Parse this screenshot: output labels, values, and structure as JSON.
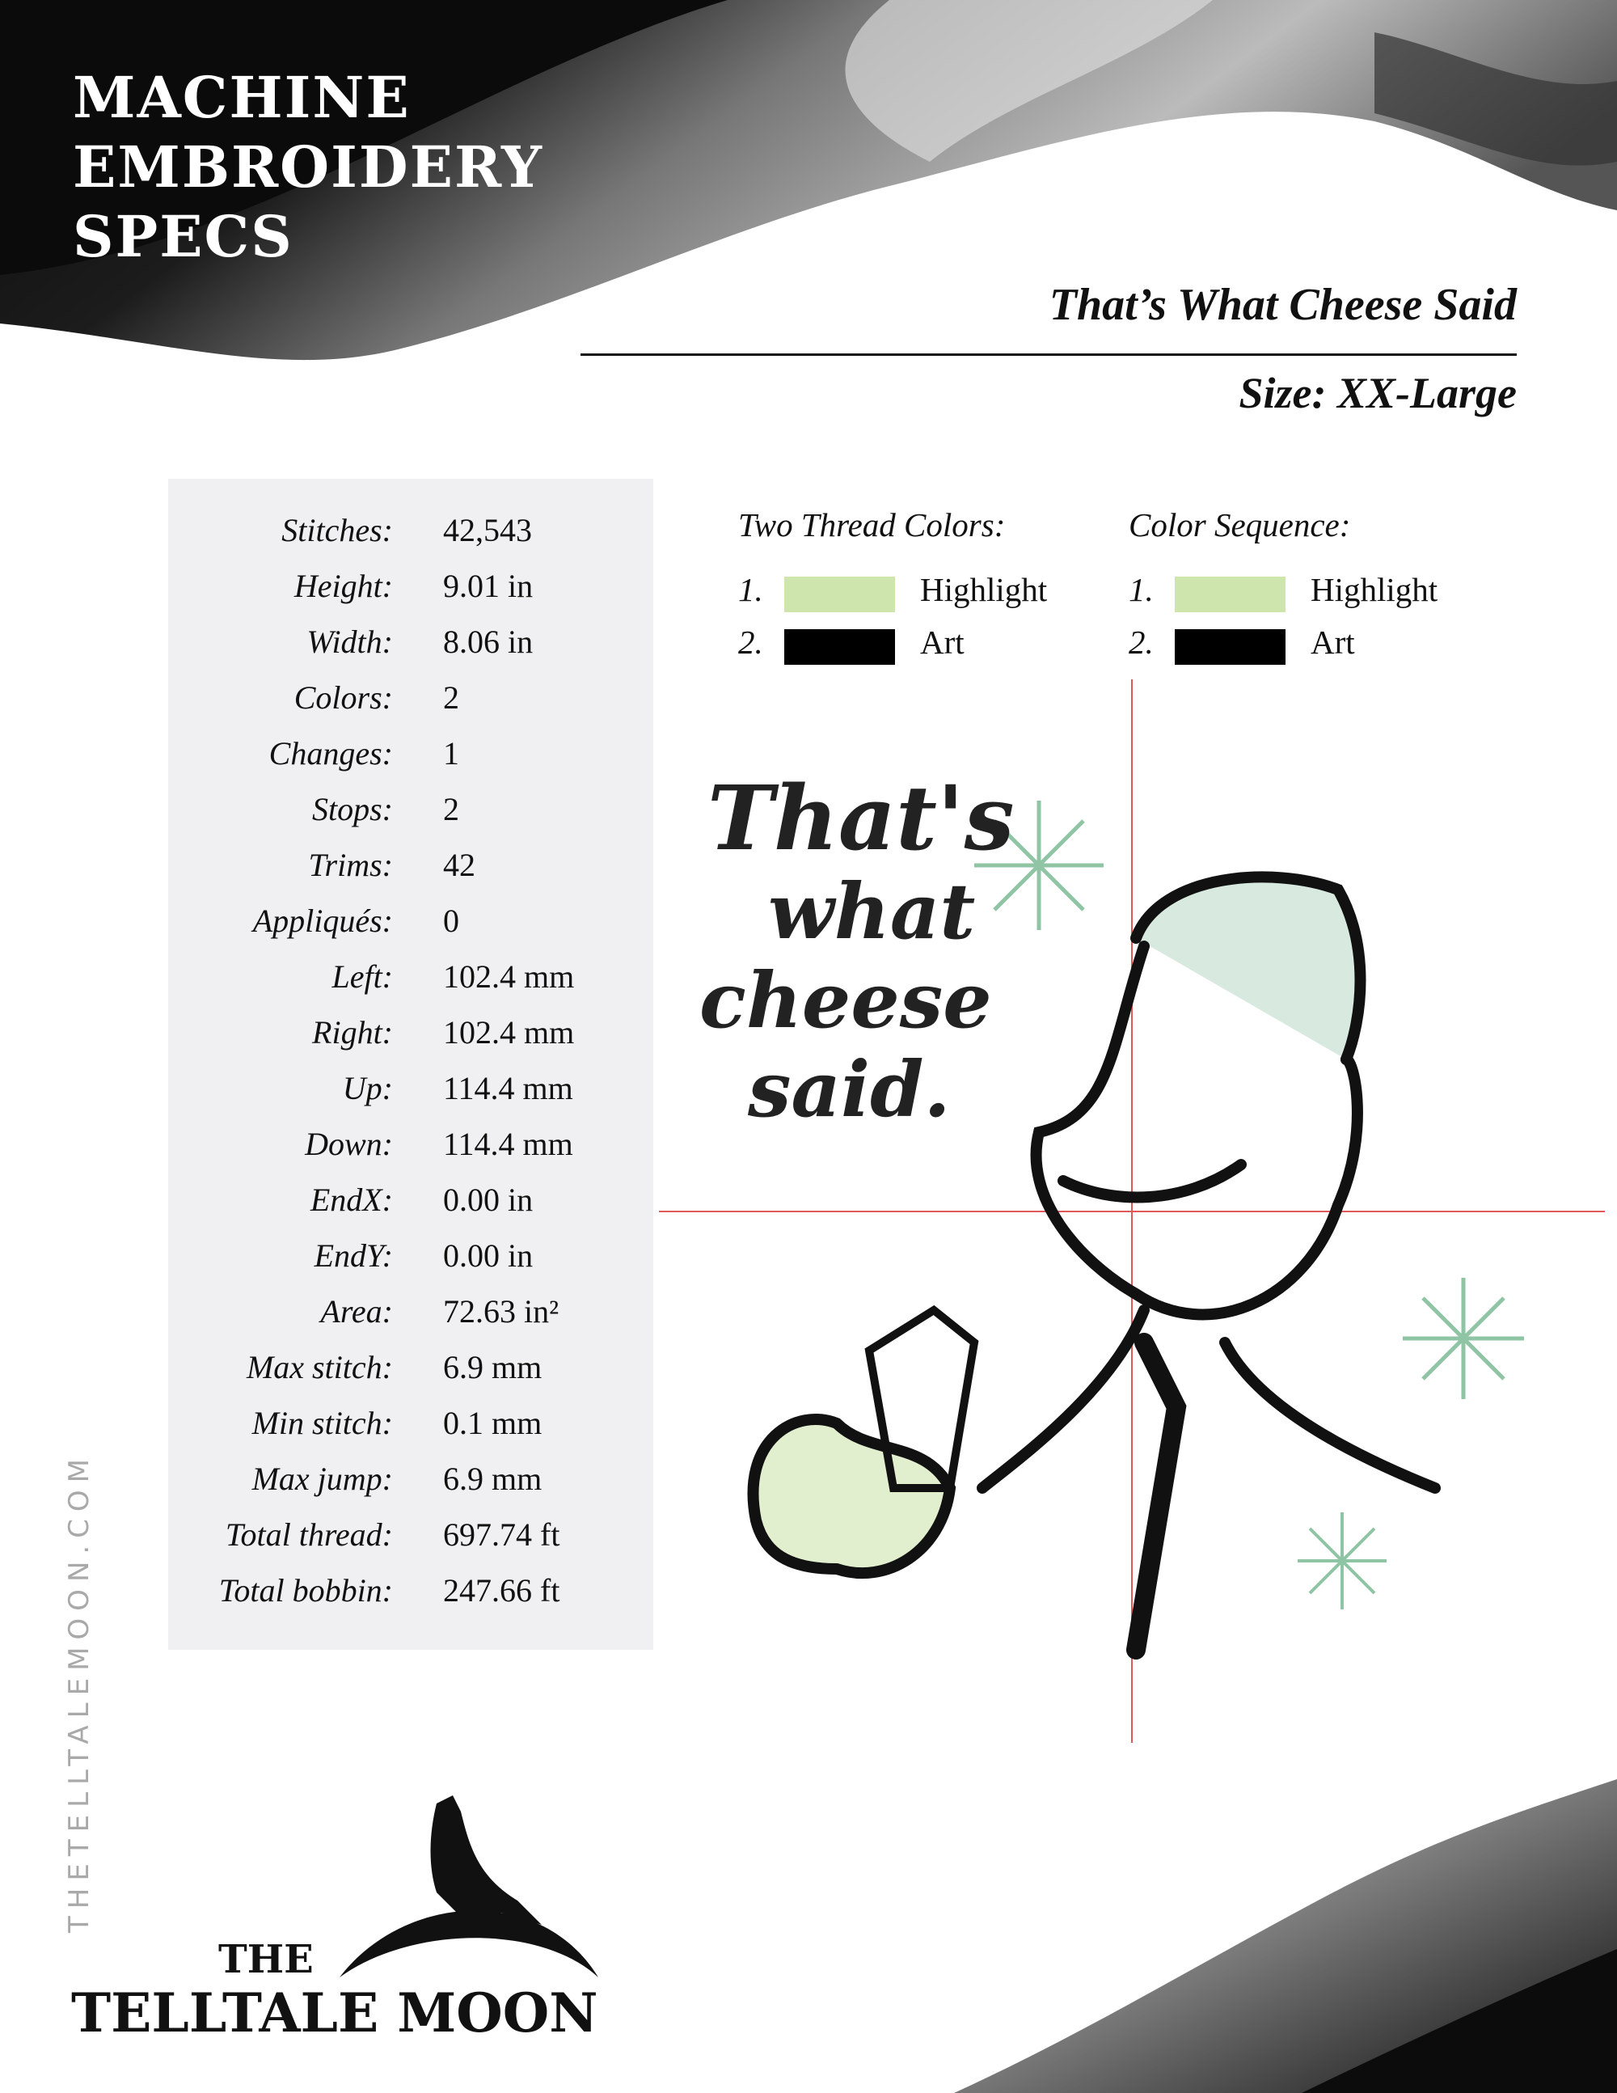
{
  "header": {
    "title_lines": [
      "MACHINE",
      "EMBROIDERY",
      "SPECS"
    ],
    "design_name": "That’s What Cheese Said",
    "size": "Size: XX-Large"
  },
  "specs": [
    {
      "label": "Stitches:",
      "value": "42,543"
    },
    {
      "label": "Height:",
      "value": "9.01 in"
    },
    {
      "label": "Width:",
      "value": "8.06 in"
    },
    {
      "label": "Colors:",
      "value": "2"
    },
    {
      "label": "Changes:",
      "value": "1"
    },
    {
      "label": "Stops:",
      "value": "2"
    },
    {
      "label": "Trims:",
      "value": "42"
    },
    {
      "label": "Appliqués:",
      "value": "0"
    },
    {
      "label": "Left:",
      "value": "102.4 mm"
    },
    {
      "label": "Right:",
      "value": "102.4 mm"
    },
    {
      "label": "Up:",
      "value": "114.4 mm"
    },
    {
      "label": "Down:",
      "value": "114.4 mm"
    },
    {
      "label": "EndX:",
      "value": "0.00 in"
    },
    {
      "label": "EndY:",
      "value": "0.00 in"
    },
    {
      "label": "Area:",
      "value": "72.63 in²"
    },
    {
      "label": "Max stitch:",
      "value": "6.9 mm"
    },
    {
      "label": "Min stitch:",
      "value": "0.1 mm"
    },
    {
      "label": "Max jump:",
      "value": "6.9 mm"
    },
    {
      "label": "Total thread:",
      "value": "697.74 ft"
    },
    {
      "label": "Total bobbin:",
      "value": "247.66 ft"
    }
  ],
  "thread_colors": {
    "heading": "Two Thread Colors:",
    "items": [
      {
        "num": "1.",
        "name": "Highlight",
        "color": "#cfe5ae"
      },
      {
        "num": "2.",
        "name": "Art",
        "color": "#000000"
      }
    ]
  },
  "color_sequence": {
    "heading": "Color Sequence:",
    "items": [
      {
        "num": "1.",
        "name": "Highlight",
        "color": "#cfe5ae"
      },
      {
        "num": "2.",
        "name": "Art",
        "color": "#000000"
      }
    ]
  },
  "artwork": {
    "text_lines": [
      "That's",
      "what",
      "cheese",
      "said."
    ],
    "crosshair_color": "#e05a5a",
    "accent_color": "#8fc4a4"
  },
  "footer": {
    "website": "THETELLTALEMOON.COM",
    "logo_the": "THE",
    "logo_name": "TELLTALE MOON"
  }
}
